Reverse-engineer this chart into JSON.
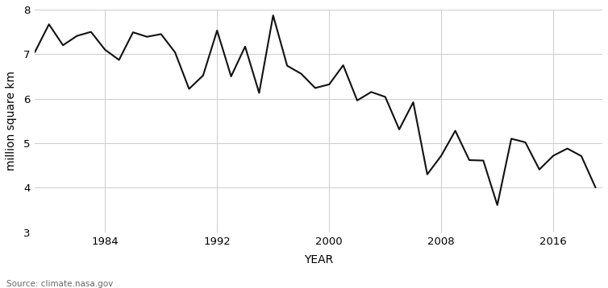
{
  "years": [
    1979,
    1980,
    1981,
    1982,
    1983,
    1984,
    1985,
    1986,
    1987,
    1988,
    1989,
    1990,
    1991,
    1992,
    1993,
    1994,
    1995,
    1996,
    1997,
    1998,
    1999,
    2000,
    2001,
    2002,
    2003,
    2004,
    2005,
    2006,
    2007,
    2008,
    2009,
    2010,
    2011,
    2012,
    2013,
    2014,
    2015,
    2016,
    2017,
    2018,
    2019
  ],
  "values": [
    7.05,
    7.67,
    7.2,
    7.41,
    7.5,
    7.1,
    6.87,
    7.49,
    7.39,
    7.45,
    7.04,
    6.22,
    6.52,
    7.53,
    6.5,
    7.17,
    6.13,
    7.87,
    6.74,
    6.56,
    6.24,
    6.32,
    6.75,
    5.96,
    6.15,
    6.04,
    5.31,
    5.92,
    4.3,
    4.72,
    5.28,
    4.62,
    4.61,
    3.61,
    5.1,
    5.02,
    4.41,
    4.72,
    4.88,
    4.71,
    4.01
  ],
  "xlabel": "YEAR",
  "ylabel": "million square km",
  "source": "Source: climate.nasa.gov",
  "ylim": [
    3,
    8
  ],
  "xlim": [
    1979,
    2019.5
  ],
  "yticks": [
    3,
    4,
    5,
    6,
    7,
    8
  ],
  "xticks": [
    1984,
    1992,
    2000,
    2008,
    2016
  ],
  "line_color": "#111111",
  "line_width": 1.5,
  "grid_color": "#cccccc",
  "bg_color": "#ffffff",
  "label_fontsize": 10,
  "tick_fontsize": 9.5,
  "source_fontsize": 7.5
}
